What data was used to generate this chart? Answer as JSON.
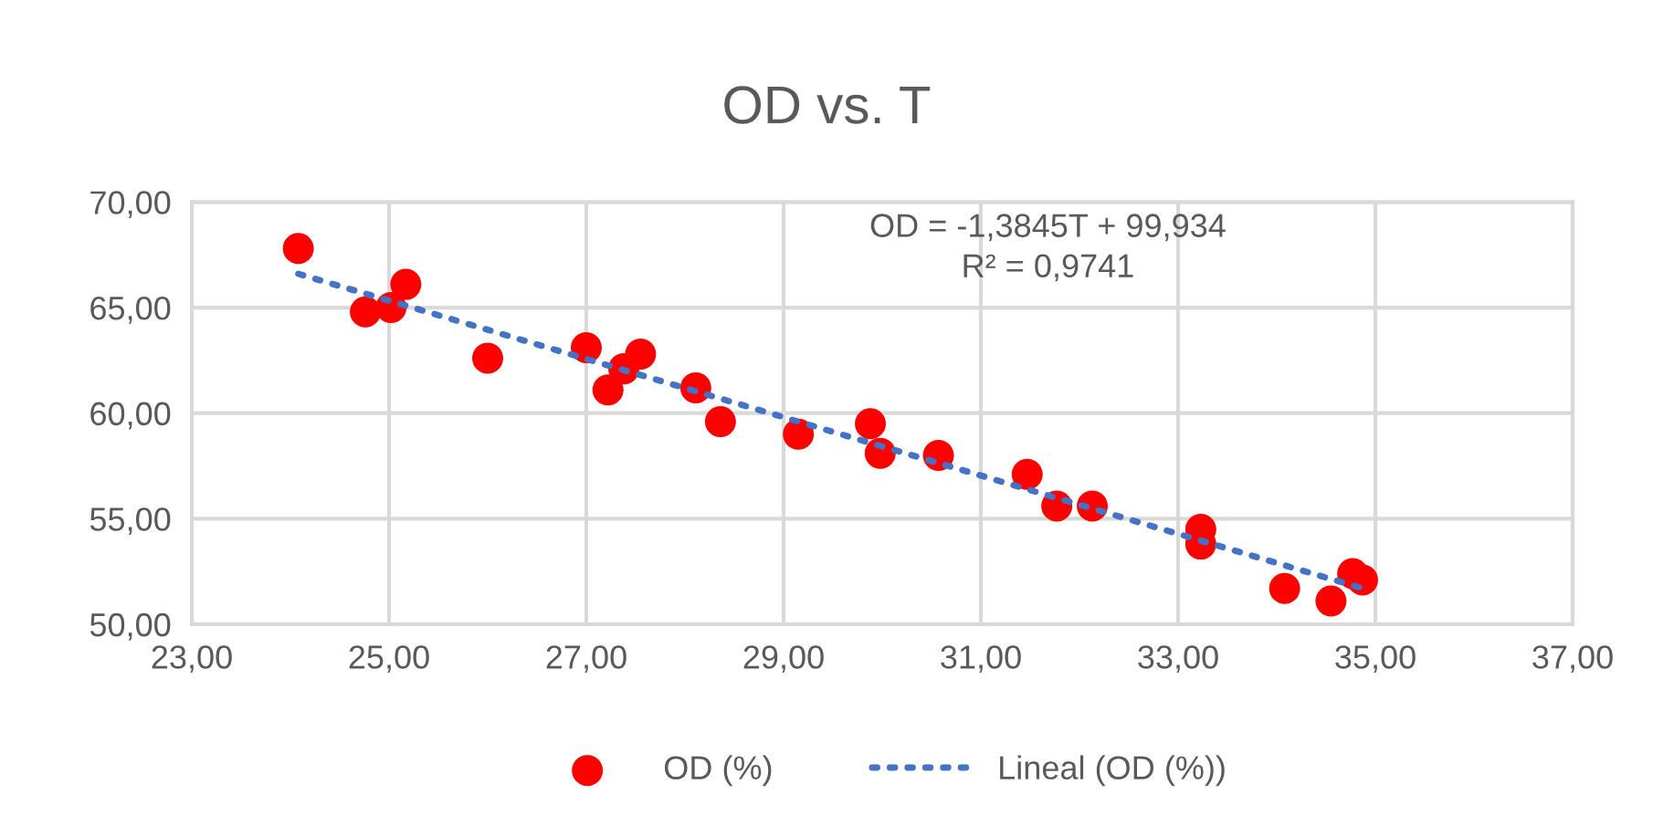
{
  "chart_data": {
    "type": "scatter",
    "title": "OD vs. T",
    "series": [
      {
        "name": "OD (%)",
        "color": "#ff0000",
        "marker": "circle",
        "x": [
          24.08,
          24.76,
          25.02,
          25.17,
          26.0,
          27.0,
          27.22,
          27.38,
          27.55,
          28.11,
          28.36,
          29.15,
          29.88,
          29.98,
          30.57,
          31.47,
          31.77,
          32.13,
          33.23,
          33.23,
          34.08,
          34.55,
          34.77,
          34.87
        ],
        "values": [
          67.8,
          64.8,
          65.0,
          66.1,
          62.6,
          63.1,
          61.1,
          62.1,
          62.8,
          61.2,
          59.6,
          59.0,
          59.5,
          58.1,
          58.0,
          57.1,
          55.6,
          55.6,
          54.5,
          53.8,
          51.7,
          51.1,
          52.4,
          52.1
        ]
      },
      {
        "name": "Lineal (OD (%))",
        "type": "line",
        "color": "#4472c4",
        "line_style": "dotted",
        "marker": "none",
        "x": [
          24.08,
          34.87
        ],
        "values": [
          66.6,
          51.7
        ]
      }
    ],
    "annotations": [
      "OD = -1,3845T + 99,934\nR² = 0,9741"
    ],
    "xlim": [
      23,
      37
    ],
    "ylim": [
      50,
      70
    ],
    "xticks": [
      {
        "value": 23,
        "label": "23,00"
      },
      {
        "value": 25,
        "label": "25,00"
      },
      {
        "value": 27,
        "label": "27,00"
      },
      {
        "value": 29,
        "label": "29,00"
      },
      {
        "value": 31,
        "label": "31,00"
      },
      {
        "value": 33,
        "label": "33,00"
      },
      {
        "value": 35,
        "label": "35,00"
      },
      {
        "value": 37,
        "label": "37,00"
      }
    ],
    "yticks": [
      {
        "value": 50,
        "label": "50,00"
      },
      {
        "value": 55,
        "label": "55,00"
      },
      {
        "value": 60,
        "label": "60,00"
      },
      {
        "value": 65,
        "label": "65,00"
      },
      {
        "value": 70,
        "label": "70,00"
      }
    ],
    "grid": true,
    "legend": "bottom"
  }
}
